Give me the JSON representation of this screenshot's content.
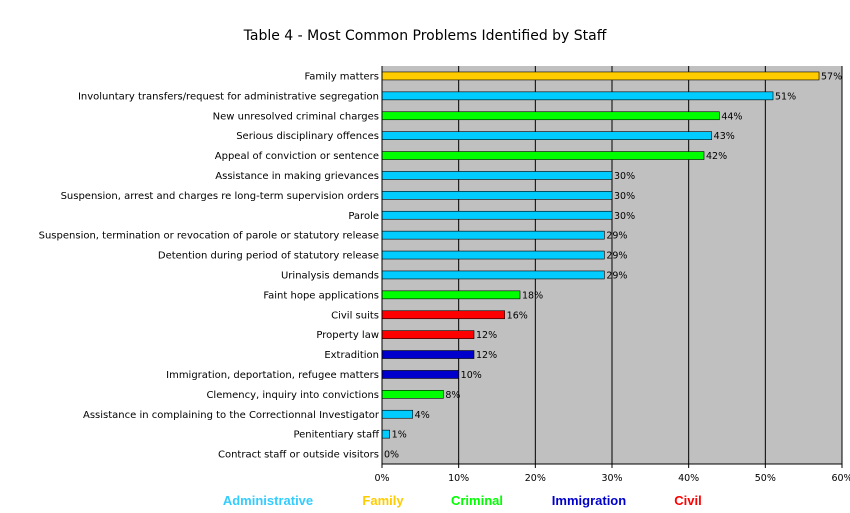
{
  "chart_data": {
    "type": "bar",
    "orientation": "horizontal",
    "title": "Table 4 - Most Common Problems Identified by Staff",
    "xlabel": "",
    "ylabel": "",
    "xlim": [
      0,
      60
    ],
    "ticks": [
      "0%",
      "10%",
      "20%",
      "30%",
      "40%",
      "50%",
      "60%"
    ],
    "grid": "vertical",
    "plot_background": "#c0c0c0",
    "categories": [
      "Family matters",
      "Involuntary transfers/request for administrative segregation",
      "New unresolved criminal charges",
      "Serious disciplinary offences",
      "Appeal of conviction or sentence",
      "Assistance in making grievances",
      "Suspension, arrest and charges re long-term supervision orders",
      "Parole",
      "Suspension, termination or revocation of parole or statutory release",
      "Detention during period of statutory release",
      "Urinalysis demands",
      "Faint hope applications",
      "Civil suits",
      "Property law",
      "Extradition",
      "Immigration, deportation, refugee matters",
      "Clemency, inquiry into convictions",
      "Assistance in complaining to the Correctionnal Investigator",
      "Penitentiary staff",
      "Contract staff or outside visitors"
    ],
    "values": [
      57,
      51,
      44,
      43,
      42,
      30,
      30,
      30,
      29,
      29,
      29,
      18,
      16,
      12,
      12,
      10,
      8,
      4,
      1,
      0
    ],
    "value_labels": [
      "57%",
      "51%",
      "44%",
      "43%",
      "42%",
      "30%",
      "30%",
      "30%",
      "29%",
      "29%",
      "29%",
      "18%",
      "16%",
      "12%",
      "12%",
      "10%",
      "8%",
      "4%",
      "1%",
      "0%"
    ],
    "groups": [
      "Family",
      "Administrative",
      "Criminal",
      "Administrative",
      "Criminal",
      "Administrative",
      "Administrative",
      "Administrative",
      "Administrative",
      "Administrative",
      "Administrative",
      "Criminal",
      "Civil",
      "Civil",
      "Immigration",
      "Immigration",
      "Criminal",
      "Administrative",
      "Administrative",
      "Administrative"
    ],
    "legend": [
      {
        "name": "Administrative",
        "color": "#00ccff",
        "text_color": "#33ccff"
      },
      {
        "name": "Family",
        "color": "#ffcc00",
        "text_color": "#ffcc00"
      },
      {
        "name": "Criminal",
        "color": "#00ff00",
        "text_color": "#00ff00"
      },
      {
        "name": "Immigration",
        "color": "#0000cc",
        "text_color": "#0000cc"
      },
      {
        "name": "Civil",
        "color": "#ff0000",
        "text_color": "#ff0000"
      }
    ],
    "legend_placement": "bottom"
  }
}
